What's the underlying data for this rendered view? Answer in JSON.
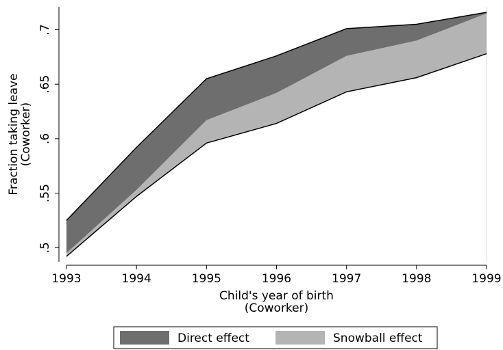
{
  "chart_data": {
    "type": "area",
    "xlabel": [
      "Child's year of birth",
      "(Coworker)"
    ],
    "ylabel": [
      "Fraction taking leave",
      "(Coworker)"
    ],
    "x": [
      1993,
      1994,
      1995,
      1996,
      1997,
      1998,
      1999
    ],
    "baseline": [
      0.492,
      0.547,
      0.596,
      0.614,
      0.643,
      0.656,
      0.678
    ],
    "series": [
      {
        "name": "Direct effect",
        "color": "#6e6e6e",
        "values": [
          0.525,
          0.592,
          0.655,
          0.676,
          0.701,
          0.705,
          0.716
        ]
      },
      {
        "name": "Snowball effect",
        "color": "#b4b4b4",
        "values": [
          0.495,
          0.553,
          0.617,
          0.642,
          0.676,
          0.69,
          0.715
        ]
      }
    ],
    "xlim": [
      1993,
      1999
    ],
    "xticks": [
      1993,
      1994,
      1995,
      1996,
      1997,
      1998,
      1999
    ],
    "ylim": [
      0.487,
      0.721
    ],
    "yticks": [
      {
        "value": 0.5,
        "label": ".5"
      },
      {
        "value": 0.55,
        "label": ".55"
      },
      {
        "value": 0.6,
        "label": ".6"
      },
      {
        "value": 0.65,
        "label": ".65"
      },
      {
        "value": 0.7,
        "label": ".7"
      }
    ],
    "legend": "bottom"
  }
}
